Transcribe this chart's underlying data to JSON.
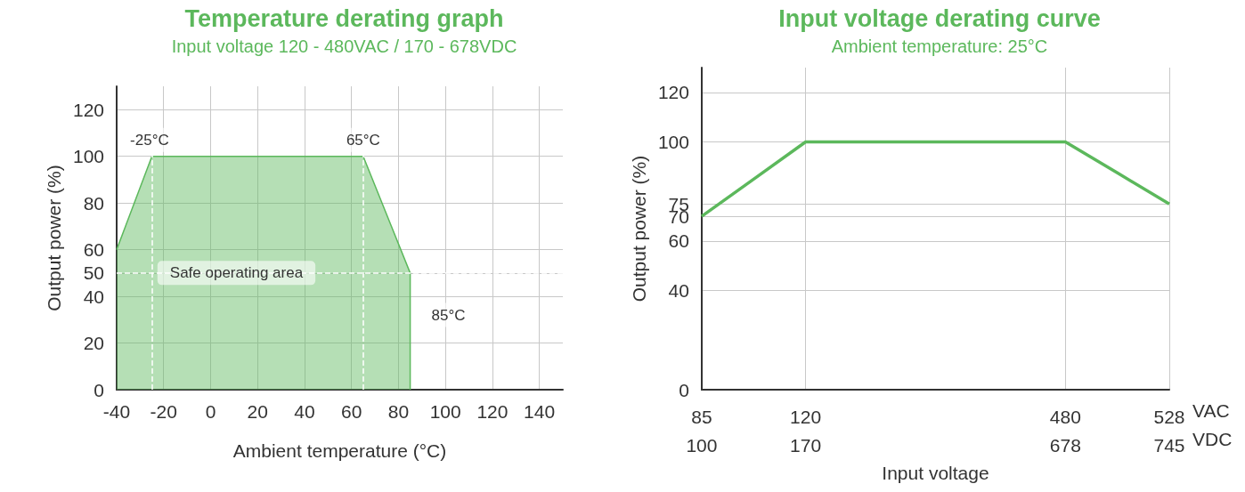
{
  "chart_data": [
    {
      "type": "area",
      "title": "Temperature derating graph",
      "subtitle": "Input voltage 120 - 480VAC / 170 - 678VDC",
      "xlabel": "Ambient temperature (°C)",
      "ylabel": "Output power (%)",
      "x": [
        -40,
        -25,
        65,
        85,
        85
      ],
      "series": [
        {
          "color": "#5cb85c",
          "values": [
            60,
            100,
            100,
            50,
            0
          ]
        }
      ],
      "xlim": [
        -40,
        150
      ],
      "xticks": [
        -40,
        -20,
        0,
        20,
        40,
        60,
        80,
        100,
        120,
        140
      ],
      "ylim": [
        0,
        130
      ],
      "yticks": [
        0,
        20,
        40,
        50,
        60,
        80,
        100,
        120
      ],
      "grid": true,
      "ref_lines": [
        {
          "axis": "x",
          "value": -25,
          "color": "#ffffff",
          "line_style": "dashed"
        },
        {
          "axis": "x",
          "value": 65,
          "color": "#ffffff",
          "line_style": "dashed"
        },
        {
          "axis": "y",
          "value": 50,
          "color": "#ffffff",
          "line_style": "dashed"
        }
      ],
      "annotations": [
        {
          "text": "-25°C",
          "x": -26,
          "y": 107
        },
        {
          "text": "65°C",
          "x": 65,
          "y": 107
        },
        {
          "text": "85°C",
          "x": 85,
          "y": 32
        },
        {
          "text": "Safe operating area",
          "x": 11,
          "y": 50
        }
      ]
    },
    {
      "type": "line",
      "title": "Input voltage derating curve",
      "subtitle": "Ambient temperature: 25°C",
      "xlabel": "Input voltage",
      "ylabel": "Output power (%)",
      "categories": [
        "85\n100",
        null,
        "120\n170",
        null,
        null,
        null,
        null,
        "480\n678",
        null,
        "528\n745"
      ],
      "series": [
        {
          "color": "#5cb85c",
          "values": [
            70,
            85,
            100,
            100,
            100,
            100,
            100,
            100,
            87.5,
            75
          ]
        }
      ],
      "ylim": [
        0,
        130
      ],
      "yticks": [
        0,
        40,
        60,
        70,
        75,
        100,
        120
      ],
      "grid": true,
      "annotations": [
        "VAC",
        "VDC"
      ]
    }
  ]
}
